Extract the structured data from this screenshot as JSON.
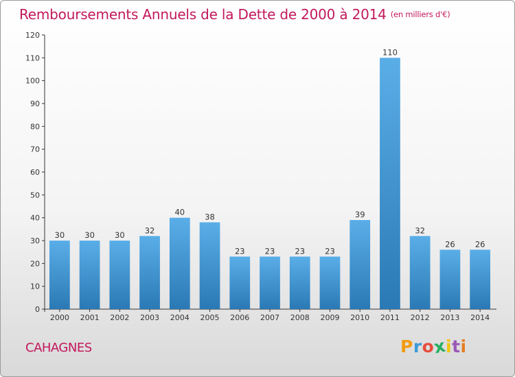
{
  "title": "Remboursements Annuels de la Dette de 2000 à 2014",
  "unit": "(en milliers d'€)",
  "commune": "CAHAGNES",
  "logo": {
    "text": "Proxiti",
    "letter_colors": [
      "#f39c12",
      "#3a9ad9",
      "#e74c3c",
      "#27ae60",
      "#f1c40f",
      "#9b59b6",
      "#e67e22"
    ]
  },
  "colors": {
    "title": "#c2185b",
    "bar_top": "#5aaee8",
    "bar_bottom": "#2a79b5"
  },
  "chart_data": {
    "type": "bar",
    "categories": [
      "2000",
      "2001",
      "2002",
      "2003",
      "2004",
      "2005",
      "2006",
      "2007",
      "2008",
      "2009",
      "2010",
      "2011",
      "2012",
      "2013",
      "2014"
    ],
    "values": [
      30,
      30,
      30,
      32,
      40,
      38,
      23,
      23,
      23,
      23,
      39,
      110,
      32,
      26,
      26
    ],
    "ylim": [
      0,
      120
    ],
    "yticks": [
      0,
      10,
      20,
      30,
      40,
      50,
      60,
      70,
      80,
      90,
      100,
      110,
      120
    ],
    "grid": false,
    "data_labels": true
  }
}
